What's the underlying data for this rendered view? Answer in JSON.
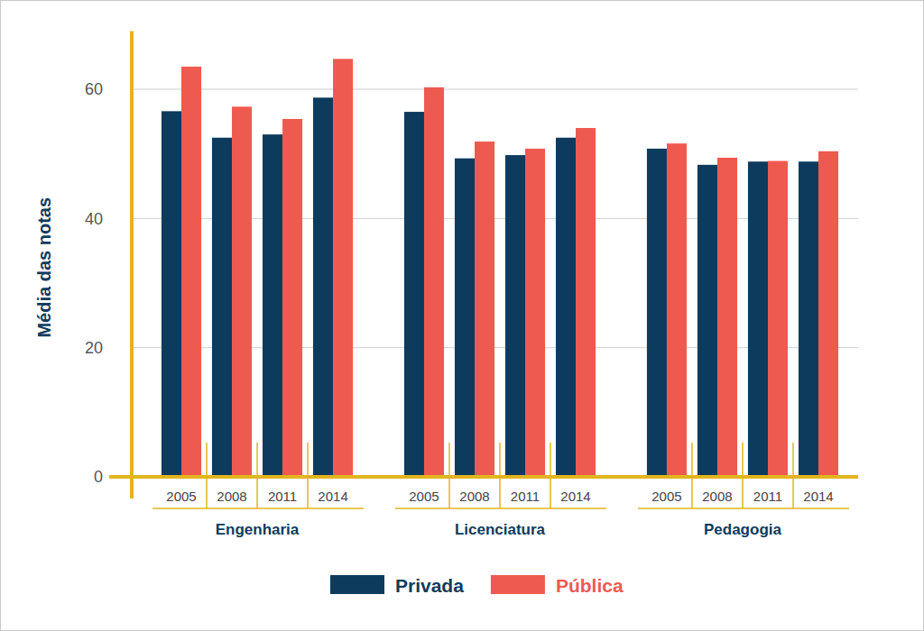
{
  "chart_data": {
    "type": "bar",
    "y_label": "Média das notas",
    "groups": [
      {
        "label": "Engenharia",
        "categories": [
          "2005",
          "2008",
          "2011",
          "2014"
        ]
      },
      {
        "label": "Licenciatura",
        "categories": [
          "2005",
          "2008",
          "2011",
          "2014"
        ]
      },
      {
        "label": "Pedagogia",
        "categories": [
          "2005",
          "2008",
          "2011",
          "2014"
        ]
      }
    ],
    "series": [
      {
        "name": "Privada",
        "color": "#0d3b5e",
        "values": [
          56.6,
          52.5,
          53.0,
          58.7,
          56.5,
          49.3,
          49.8,
          52.5,
          50.8,
          48.3,
          48.8,
          48.8
        ]
      },
      {
        "name": "Pública",
        "color": "#ef5a50",
        "values": [
          63.5,
          57.3,
          55.4,
          64.7,
          60.3,
          51.9,
          50.8,
          54.0,
          51.6,
          49.4,
          48.9,
          50.4
        ]
      }
    ],
    "ylim": [
      0,
      69
    ],
    "yticks": [
      0,
      20,
      40,
      60
    ],
    "grid": true,
    "legend": "bottom"
  }
}
